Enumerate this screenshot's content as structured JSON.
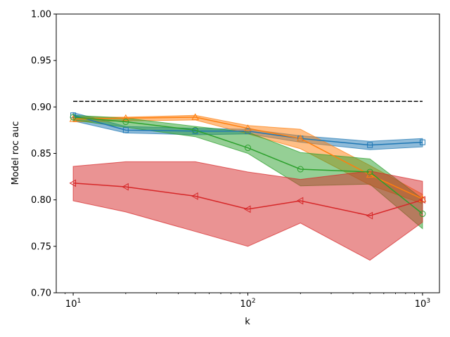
{
  "chart_data": {
    "type": "line",
    "xlabel": "k",
    "ylabel": "Model roc auc",
    "xscale": "log",
    "xlim": [
      8,
      1250
    ],
    "ylim": [
      0.7,
      1.0
    ],
    "x": [
      10,
      20,
      50,
      100,
      200,
      500,
      1000
    ],
    "xticks": [
      {
        "value": 10,
        "base": "10",
        "exp": "1"
      },
      {
        "value": 100,
        "base": "10",
        "exp": "2"
      },
      {
        "value": 1000,
        "base": "10",
        "exp": "3"
      }
    ],
    "yticks": [
      "0.70",
      "0.75",
      "0.80",
      "0.85",
      "0.90",
      "0.95",
      "1.00"
    ],
    "grid": false,
    "reference_line": {
      "y": 0.906,
      "color": "#000000",
      "style": "dashed"
    },
    "series": [
      {
        "color": "#1f77b4",
        "marker": "square",
        "values": [
          0.891,
          0.875,
          0.874,
          0.874,
          0.866,
          0.859,
          0.862
        ],
        "lower": [
          0.885,
          0.872,
          0.87,
          0.871,
          0.862,
          0.854,
          0.857
        ],
        "upper": [
          0.894,
          0.879,
          0.877,
          0.876,
          0.869,
          0.863,
          0.866
        ]
      },
      {
        "color": "#ff7f0e",
        "marker": "triangle-up",
        "values": [
          0.887,
          0.888,
          0.889,
          0.877,
          0.866,
          0.827,
          0.801
        ],
        "lower": [
          0.884,
          0.885,
          0.886,
          0.871,
          0.855,
          0.816,
          0.796
        ],
        "upper": [
          0.889,
          0.889,
          0.891,
          0.88,
          0.876,
          0.837,
          0.806
        ]
      },
      {
        "color": "#2ca02c",
        "marker": "circle",
        "values": [
          0.889,
          0.884,
          0.875,
          0.856,
          0.833,
          0.83,
          0.785
        ],
        "lower": [
          0.886,
          0.878,
          0.868,
          0.85,
          0.815,
          0.817,
          0.769
        ],
        "upper": [
          0.891,
          0.888,
          0.879,
          0.873,
          0.851,
          0.844,
          0.801
        ]
      },
      {
        "color": "#d62728",
        "marker": "triangle-left",
        "values": [
          0.818,
          0.814,
          0.804,
          0.79,
          0.799,
          0.783,
          0.8
        ],
        "lower": [
          0.799,
          0.787,
          0.766,
          0.75,
          0.775,
          0.735,
          0.776
        ],
        "upper": [
          0.836,
          0.841,
          0.841,
          0.83,
          0.822,
          0.831,
          0.82
        ]
      }
    ]
  }
}
